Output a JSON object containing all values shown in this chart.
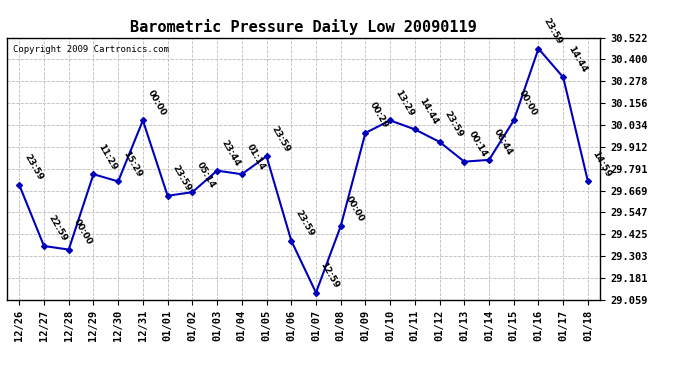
{
  "title": "Barometric Pressure Daily Low 20090119",
  "copyright": "Copyright 2009 Cartronics.com",
  "x_labels": [
    "12/26",
    "12/27",
    "12/28",
    "12/29",
    "12/30",
    "12/31",
    "01/01",
    "01/02",
    "01/03",
    "01/04",
    "01/05",
    "01/06",
    "01/07",
    "01/08",
    "01/09",
    "01/10",
    "01/11",
    "01/12",
    "01/13",
    "01/14",
    "01/15",
    "01/16",
    "01/17",
    "01/18"
  ],
  "y_values": [
    29.7,
    29.36,
    29.34,
    29.76,
    29.72,
    30.06,
    29.64,
    29.66,
    29.78,
    29.76,
    29.86,
    29.39,
    29.1,
    29.47,
    29.99,
    30.06,
    30.01,
    29.94,
    29.83,
    29.84,
    30.06,
    30.46,
    30.3,
    29.72
  ],
  "time_labels": [
    "23:59",
    "22:59",
    "00:00",
    "11:29",
    "15:29",
    "00:00",
    "23:59",
    "05:14",
    "23:44",
    "01:14",
    "23:59",
    "23:59",
    "12:59",
    "00:00",
    "00:29",
    "13:29",
    "14:44",
    "23:59",
    "00:14",
    "06:44",
    "00:00",
    "23:59",
    "14:44",
    "14:59"
  ],
  "y_ticks": [
    29.059,
    29.181,
    29.303,
    29.425,
    29.547,
    29.669,
    29.791,
    29.912,
    30.034,
    30.156,
    30.278,
    30.4,
    30.522
  ],
  "line_color": "#0000bb",
  "marker_color": "#0000bb",
  "bg_color": "#ffffff",
  "grid_color": "#bbbbbb",
  "title_fontsize": 11,
  "label_fontsize": 6.5,
  "tick_fontsize": 7.5,
  "copyright_fontsize": 6.5
}
